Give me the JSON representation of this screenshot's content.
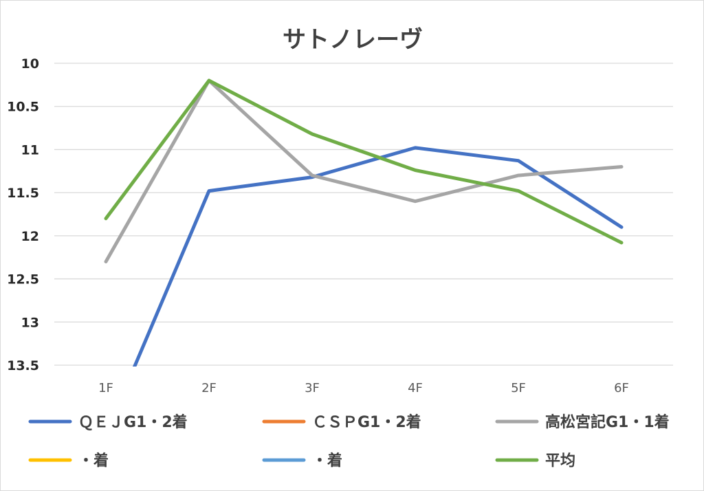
{
  "chart_data": {
    "type": "line",
    "title": "サトノレーヴ",
    "categories": [
      "1F",
      "2F",
      "3F",
      "4F",
      "5F",
      "6F"
    ],
    "ylim": [
      10,
      13.5
    ],
    "y_reversed": true,
    "yticks": [
      10,
      10.5,
      11,
      11.5,
      12,
      12.5,
      13,
      13.5
    ],
    "ytick_labels": [
      "10",
      "10.5",
      "11",
      "11.5",
      "12",
      "12.5",
      "13",
      "13.5"
    ],
    "grid": true,
    "legend_position": "bottom",
    "series": [
      {
        "name": "ＱＥＪG1・2着",
        "color": "#4472C4",
        "values": [
          14.3,
          11.48,
          11.32,
          10.98,
          11.13,
          11.9
        ]
      },
      {
        "name": "ＣＳＰG1・2着",
        "color": "#ED7D31",
        "values": [
          null,
          null,
          null,
          null,
          null,
          null
        ]
      },
      {
        "name": "高松宮記G1・1着",
        "color": "#A5A5A5",
        "values": [
          12.3,
          10.2,
          11.3,
          11.6,
          11.3,
          11.2
        ]
      },
      {
        "name": "・着",
        "color": "#FFC000",
        "values": [
          null,
          null,
          null,
          null,
          null,
          null
        ]
      },
      {
        "name": "・着",
        "color": "#5B9BD5",
        "values": [
          null,
          null,
          null,
          null,
          null,
          null
        ]
      },
      {
        "name": "平均",
        "color": "#70AD47",
        "values": [
          11.8,
          10.2,
          10.82,
          11.24,
          11.48,
          12.08
        ]
      }
    ]
  }
}
